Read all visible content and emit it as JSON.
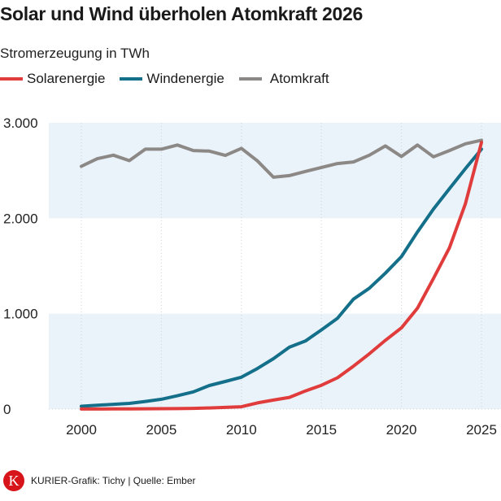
{
  "chart_data": {
    "type": "line",
    "title": "Solar und Wind überholen Atomkraft 2026",
    "subtitle": "Stromerzeugung in TWh",
    "x": [
      2000,
      2001,
      2002,
      2003,
      2004,
      2005,
      2006,
      2007,
      2008,
      2009,
      2010,
      2011,
      2012,
      2013,
      2014,
      2015,
      2016,
      2017,
      2018,
      2019,
      2020,
      2021,
      2022,
      2023,
      2024,
      2025
    ],
    "series": [
      {
        "name": "Solarenergie",
        "color": "#e03c3c",
        "values": [
          1,
          1,
          2,
          2,
          3,
          4,
          5,
          8,
          12,
          18,
          25,
          65,
          95,
          123,
          190,
          250,
          328,
          450,
          580,
          721,
          851,
          1058,
          1370,
          1690,
          2154,
          2795
        ]
      },
      {
        "name": "Windenergie",
        "color": "#14708a",
        "values": [
          30,
          40,
          50,
          60,
          80,
          103,
          140,
          181,
          247,
          290,
          334,
          425,
          528,
          649,
          713,
          830,
          951,
          1152,
          1267,
          1425,
          1598,
          1856,
          2097,
          2310,
          2520,
          2724
        ]
      },
      {
        "name": "Atomkraft",
        "color": "#8c8885",
        "values": [
          2544,
          2624,
          2661,
          2604,
          2724,
          2724,
          2767,
          2709,
          2703,
          2658,
          2732,
          2601,
          2430,
          2447,
          2490,
          2532,
          2573,
          2590,
          2661,
          2758,
          2647,
          2767,
          2644,
          2709,
          2780,
          2818
        ]
      }
    ],
    "xlim": [
      2000,
      2025
    ],
    "ylim": [
      0,
      3000
    ],
    "yticks": [
      0,
      1000,
      2000,
      3000
    ],
    "ytick_labels": [
      "0",
      "1.000",
      "2.000",
      "3.000"
    ],
    "xticks": [
      2000,
      2005,
      2010,
      2015,
      2020,
      2025
    ],
    "xtick_labels": [
      "2000",
      "2005",
      "2010",
      "2015",
      "2020",
      "2025"
    ],
    "legend_placement": "top-left",
    "band_color": "#eaf2fa"
  },
  "footer": {
    "logo_letter": "K",
    "credit": "KURIER-Grafik: Tichy | Quelle: Ember"
  }
}
